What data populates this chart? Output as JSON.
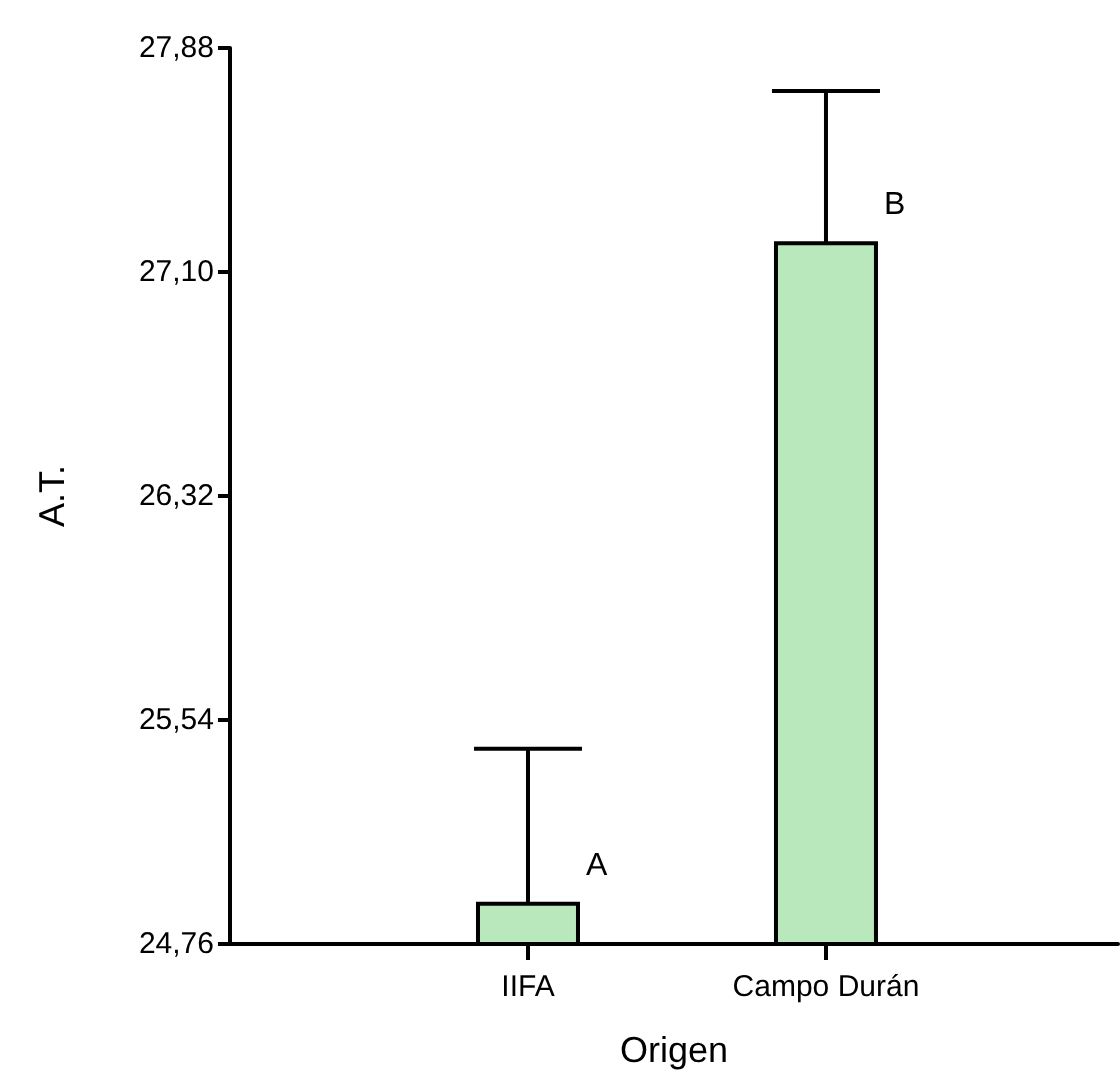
{
  "chart_data": {
    "type": "bar",
    "xlabel": "Origen",
    "ylabel": "A.T.",
    "categories": [
      "IIFA",
      "Campo Durán"
    ],
    "values": [
      24.9,
      27.2
    ],
    "errors": [
      [
        24.9,
        25.44
      ],
      [
        27.2,
        27.73
      ]
    ],
    "color": "#b8e8bc",
    "ylim": [
      24.76,
      27.88
    ],
    "yticks": [
      {
        "value": 24.76,
        "label": "24,76"
      },
      {
        "value": 25.54,
        "label": "25,54"
      },
      {
        "value": 26.32,
        "label": "26,32"
      },
      {
        "value": 27.1,
        "label": "27,10"
      },
      {
        "value": 27.88,
        "label": "27,88"
      }
    ],
    "annotations": [
      "A",
      "B"
    ],
    "grid": false
  }
}
